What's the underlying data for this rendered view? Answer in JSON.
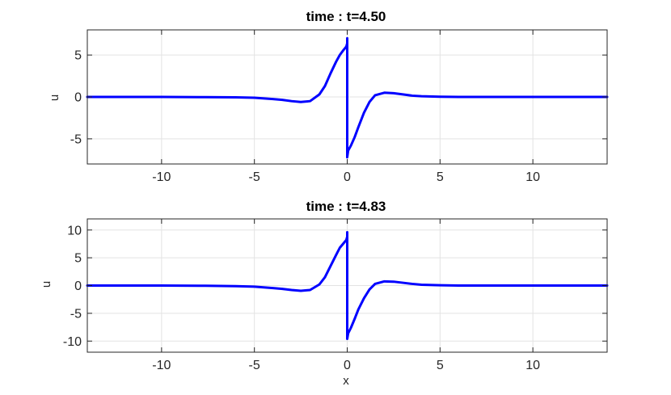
{
  "chart_data": [
    {
      "type": "line",
      "title": "time : t=4.50",
      "xlabel": "",
      "ylabel": "u",
      "xlim": [
        -14,
        14
      ],
      "ylim": [
        -8,
        8
      ],
      "xticks": [
        -10,
        -5,
        0,
        5,
        10
      ],
      "xtick_labels": [
        "-10",
        "-5",
        "0",
        "5",
        "10"
      ],
      "yticks": [
        -5,
        0,
        5
      ],
      "ytick_labels": [
        "-5",
        "0",
        "5"
      ],
      "grid": true,
      "color": "#0000ff",
      "series": [
        {
          "x": [
            -14,
            -10,
            -8,
            -6,
            -5,
            -4,
            -3.5,
            -3,
            -2.5,
            -2,
            -1.5,
            -1.2,
            -0.9,
            -0.6,
            -0.4,
            -0.2,
            -0.05,
            0,
            0,
            0,
            0.05,
            0.2,
            0.4,
            0.6,
            0.9,
            1.2,
            1.5,
            2,
            2.5,
            3,
            3.5,
            4,
            5,
            6,
            8,
            10,
            14
          ],
          "y": [
            0,
            0,
            -0.02,
            -0.05,
            -0.1,
            -0.25,
            -0.35,
            -0.5,
            -0.6,
            -0.5,
            0.3,
            1.3,
            2.8,
            4.2,
            5.0,
            5.6,
            6.0,
            6.4,
            7.0,
            -7.2,
            -6.4,
            -5.8,
            -4.8,
            -3.6,
            -1.9,
            -0.6,
            0.2,
            0.5,
            0.45,
            0.3,
            0.15,
            0.08,
            0.02,
            0,
            0,
            0,
            0
          ]
        }
      ]
    },
    {
      "type": "line",
      "title": "time : t=4.83",
      "xlabel": "x",
      "ylabel": "u",
      "xlim": [
        -14,
        14
      ],
      "ylim": [
        -12,
        12
      ],
      "xticks": [
        -10,
        -5,
        0,
        5,
        10
      ],
      "xtick_labels": [
        "-10",
        "-5",
        "0",
        "5",
        "10"
      ],
      "yticks": [
        -10,
        -5,
        0,
        5,
        10
      ],
      "ytick_labels": [
        "-10",
        "-5",
        "0",
        "5",
        "10"
      ],
      "grid": true,
      "color": "#0000ff",
      "series": [
        {
          "x": [
            -14,
            -10,
            -8,
            -6,
            -5,
            -4,
            -3.5,
            -3,
            -2.5,
            -2,
            -1.5,
            -1.2,
            -0.9,
            -0.6,
            -0.4,
            -0.2,
            -0.05,
            0,
            0,
            0,
            0.05,
            0.2,
            0.4,
            0.6,
            0.9,
            1.2,
            1.5,
            2,
            2.5,
            3,
            3.5,
            4,
            5,
            6,
            8,
            10,
            14
          ],
          "y": [
            0,
            0,
            -0.03,
            -0.1,
            -0.2,
            -0.45,
            -0.6,
            -0.8,
            -0.95,
            -0.8,
            0.2,
            1.5,
            3.5,
            5.5,
            6.8,
            7.6,
            8.2,
            8.8,
            9.6,
            -9.6,
            -8.6,
            -7.6,
            -6.0,
            -4.3,
            -2.3,
            -0.7,
            0.3,
            0.75,
            0.7,
            0.5,
            0.3,
            0.15,
            0.05,
            0,
            0,
            0,
            0
          ]
        }
      ]
    }
  ]
}
